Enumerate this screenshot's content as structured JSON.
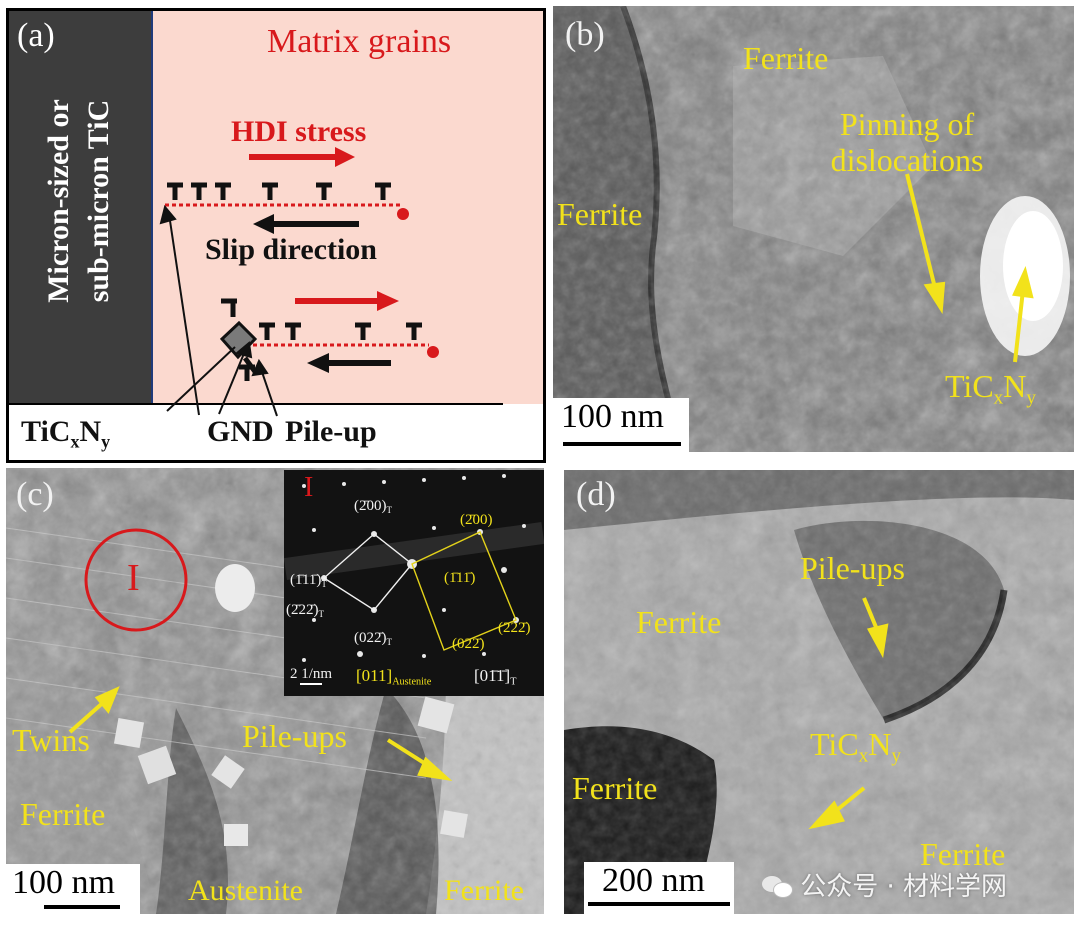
{
  "panel_a": {
    "label": "(a)",
    "matrix": "Matrix grains",
    "tic_side_line1": "Micron-sized or",
    "tic_side_line2": "sub-micron TiC",
    "hdi": "HDI stress",
    "slip": "Slip direction",
    "ticxny_main": "TiC",
    "ticxny_x": "x",
    "ticxny_n": "N",
    "ticxny_y": "y",
    "gnd": "GND",
    "pileup": "Pile-up",
    "colors": {
      "matrix_bg": "#fbd9cf",
      "precip_bg": "#3d3d3d",
      "red": "#d8191c"
    }
  },
  "panel_b": {
    "label": "(b)",
    "ferrite_top": "Ferrite",
    "ferrite_left": "Ferrite",
    "pinning_line1": "Pinning of",
    "pinning_line2": "dislocations",
    "tic_main": "TiC",
    "tic_x": "x",
    "tic_n": "N",
    "tic_y": "y",
    "scale": "100 nm"
  },
  "panel_c": {
    "label": "(c)",
    "region": "I",
    "twins": "Twins",
    "pileups": "Pile-ups",
    "ferrite_left": "Ferrite",
    "austenite": "Austenite",
    "ferrite_right": "Ferrite",
    "scale": "100 nm",
    "inset": {
      "label": "I",
      "spot_200T": "(2̄00)",
      "spot_200T_sub": "T",
      "spot_111T": "(1̄11̄)",
      "spot_111T_sub": "T",
      "spot_222T": "(2̄22̄)",
      "spot_222T_sub": "T",
      "spot_022T": "(022̄)",
      "spot_022T_sub": "T",
      "spot_200": "(2̄00)",
      "spot_111": "(1̄11̄)",
      "spot_222": "(222̄)",
      "spot_022": "(022̄)",
      "scale": "2 1/nm",
      "zone_aus": "[011]",
      "zone_aus_sub": "Austenite",
      "zone_t": "[01̄1̄]",
      "zone_t_sub": "T"
    }
  },
  "panel_d": {
    "label": "(d)",
    "pileups": "Pile-ups",
    "ferrite_center": "Ferrite",
    "ferrite_left": "Ferrite",
    "ferrite_right": "Ferrite",
    "tic_main": "TiC",
    "tic_x": "x",
    "tic_n": "N",
    "tic_y": "y",
    "scale": "200 nm",
    "watermark": "公众号 · 材料学网"
  }
}
